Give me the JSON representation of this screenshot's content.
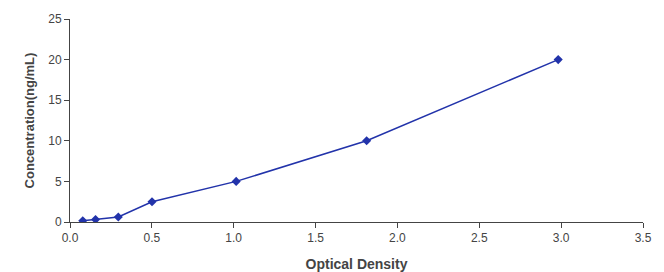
{
  "chart_data": {
    "type": "line",
    "xlabel": "Optical Density",
    "ylabel": "Concentration(ng/mL)",
    "x": [
      0.078,
      0.156,
      0.295,
      0.501,
      1.015,
      1.812,
      2.982
    ],
    "values": [
      0.156,
      0.312,
      0.625,
      2.5,
      5.0,
      10.0,
      20.0
    ],
    "xlim": [
      0,
      3.5
    ],
    "ylim": [
      0,
      25
    ],
    "xticks": [
      {
        "value": 0,
        "label": "0.0"
      },
      0.5,
      {
        "value": 1.0,
        "label": "1.0"
      },
      1.5,
      {
        "value": 2.0,
        "label": "2.0"
      },
      2.5,
      {
        "value": 3.0,
        "label": "3.0"
      },
      3.5
    ],
    "yticks": [
      0,
      5,
      10,
      15,
      20,
      25
    ],
    "color": "#2233AA",
    "marker": "diamond",
    "grid": false
  }
}
